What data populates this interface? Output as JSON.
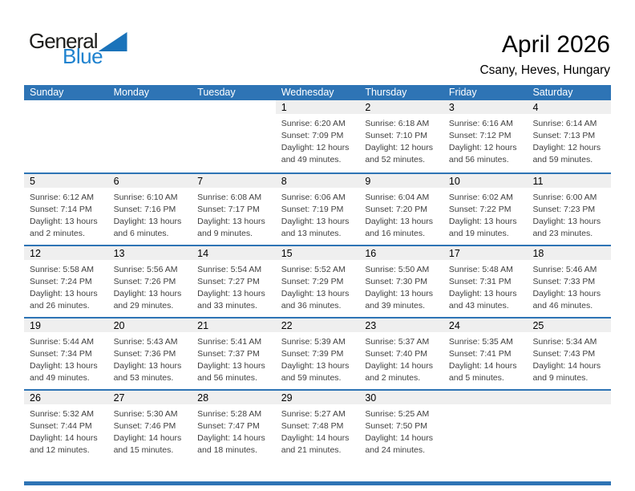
{
  "logo": {
    "general": "General",
    "blue": "Blue"
  },
  "header": {
    "title": "April 2026",
    "subtitle": "Csany, Heves, Hungary"
  },
  "colors": {
    "header_blue": "#2e74b5",
    "strip_gray": "#efefef",
    "logo_blue": "#1e82cf",
    "logo_triangle_blue": "#1a73ba"
  },
  "calendar": {
    "weekdays": [
      "Sunday",
      "Monday",
      "Tuesday",
      "Wednesday",
      "Thursday",
      "Friday",
      "Saturday"
    ],
    "weeks": [
      {
        "days": [
          null,
          null,
          null,
          {
            "date": "1",
            "sunrise": "Sunrise: 6:20 AM",
            "sunset": "Sunset: 7:09 PM",
            "daylight": "Daylight: 12 hours and 49 minutes."
          },
          {
            "date": "2",
            "sunrise": "Sunrise: 6:18 AM",
            "sunset": "Sunset: 7:10 PM",
            "daylight": "Daylight: 12 hours and 52 minutes."
          },
          {
            "date": "3",
            "sunrise": "Sunrise: 6:16 AM",
            "sunset": "Sunset: 7:12 PM",
            "daylight": "Daylight: 12 hours and 56 minutes."
          },
          {
            "date": "4",
            "sunrise": "Sunrise: 6:14 AM",
            "sunset": "Sunset: 7:13 PM",
            "daylight": "Daylight: 12 hours and 59 minutes."
          }
        ]
      },
      {
        "days": [
          {
            "date": "5",
            "sunrise": "Sunrise: 6:12 AM",
            "sunset": "Sunset: 7:14 PM",
            "daylight": "Daylight: 13 hours and 2 minutes."
          },
          {
            "date": "6",
            "sunrise": "Sunrise: 6:10 AM",
            "sunset": "Sunset: 7:16 PM",
            "daylight": "Daylight: 13 hours and 6 minutes."
          },
          {
            "date": "7",
            "sunrise": "Sunrise: 6:08 AM",
            "sunset": "Sunset: 7:17 PM",
            "daylight": "Daylight: 13 hours and 9 minutes."
          },
          {
            "date": "8",
            "sunrise": "Sunrise: 6:06 AM",
            "sunset": "Sunset: 7:19 PM",
            "daylight": "Daylight: 13 hours and 13 minutes."
          },
          {
            "date": "9",
            "sunrise": "Sunrise: 6:04 AM",
            "sunset": "Sunset: 7:20 PM",
            "daylight": "Daylight: 13 hours and 16 minutes."
          },
          {
            "date": "10",
            "sunrise": "Sunrise: 6:02 AM",
            "sunset": "Sunset: 7:22 PM",
            "daylight": "Daylight: 13 hours and 19 minutes."
          },
          {
            "date": "11",
            "sunrise": "Sunrise: 6:00 AM",
            "sunset": "Sunset: 7:23 PM",
            "daylight": "Daylight: 13 hours and 23 minutes."
          }
        ]
      },
      {
        "days": [
          {
            "date": "12",
            "sunrise": "Sunrise: 5:58 AM",
            "sunset": "Sunset: 7:24 PM",
            "daylight": "Daylight: 13 hours and 26 minutes."
          },
          {
            "date": "13",
            "sunrise": "Sunrise: 5:56 AM",
            "sunset": "Sunset: 7:26 PM",
            "daylight": "Daylight: 13 hours and 29 minutes."
          },
          {
            "date": "14",
            "sunrise": "Sunrise: 5:54 AM",
            "sunset": "Sunset: 7:27 PM",
            "daylight": "Daylight: 13 hours and 33 minutes."
          },
          {
            "date": "15",
            "sunrise": "Sunrise: 5:52 AM",
            "sunset": "Sunset: 7:29 PM",
            "daylight": "Daylight: 13 hours and 36 minutes."
          },
          {
            "date": "16",
            "sunrise": "Sunrise: 5:50 AM",
            "sunset": "Sunset: 7:30 PM",
            "daylight": "Daylight: 13 hours and 39 minutes."
          },
          {
            "date": "17",
            "sunrise": "Sunrise: 5:48 AM",
            "sunset": "Sunset: 7:31 PM",
            "daylight": "Daylight: 13 hours and 43 minutes."
          },
          {
            "date": "18",
            "sunrise": "Sunrise: 5:46 AM",
            "sunset": "Sunset: 7:33 PM",
            "daylight": "Daylight: 13 hours and 46 minutes."
          }
        ]
      },
      {
        "days": [
          {
            "date": "19",
            "sunrise": "Sunrise: 5:44 AM",
            "sunset": "Sunset: 7:34 PM",
            "daylight": "Daylight: 13 hours and 49 minutes."
          },
          {
            "date": "20",
            "sunrise": "Sunrise: 5:43 AM",
            "sunset": "Sunset: 7:36 PM",
            "daylight": "Daylight: 13 hours and 53 minutes."
          },
          {
            "date": "21",
            "sunrise": "Sunrise: 5:41 AM",
            "sunset": "Sunset: 7:37 PM",
            "daylight": "Daylight: 13 hours and 56 minutes."
          },
          {
            "date": "22",
            "sunrise": "Sunrise: 5:39 AM",
            "sunset": "Sunset: 7:39 PM",
            "daylight": "Daylight: 13 hours and 59 minutes."
          },
          {
            "date": "23",
            "sunrise": "Sunrise: 5:37 AM",
            "sunset": "Sunset: 7:40 PM",
            "daylight": "Daylight: 14 hours and 2 minutes."
          },
          {
            "date": "24",
            "sunrise": "Sunrise: 5:35 AM",
            "sunset": "Sunset: 7:41 PM",
            "daylight": "Daylight: 14 hours and 5 minutes."
          },
          {
            "date": "25",
            "sunrise": "Sunrise: 5:34 AM",
            "sunset": "Sunset: 7:43 PM",
            "daylight": "Daylight: 14 hours and 9 minutes."
          }
        ]
      },
      {
        "days": [
          {
            "date": "26",
            "sunrise": "Sunrise: 5:32 AM",
            "sunset": "Sunset: 7:44 PM",
            "daylight": "Daylight: 14 hours and 12 minutes."
          },
          {
            "date": "27",
            "sunrise": "Sunrise: 5:30 AM",
            "sunset": "Sunset: 7:46 PM",
            "daylight": "Daylight: 14 hours and 15 minutes."
          },
          {
            "date": "28",
            "sunrise": "Sunrise: 5:28 AM",
            "sunset": "Sunset: 7:47 PM",
            "daylight": "Daylight: 14 hours and 18 minutes."
          },
          {
            "date": "29",
            "sunrise": "Sunrise: 5:27 AM",
            "sunset": "Sunset: 7:48 PM",
            "daylight": "Daylight: 14 hours and 21 minutes."
          },
          {
            "date": "30",
            "sunrise": "Sunrise: 5:25 AM",
            "sunset": "Sunset: 7:50 PM",
            "daylight": "Daylight: 14 hours and 24 minutes."
          },
          null,
          null
        ]
      }
    ]
  }
}
